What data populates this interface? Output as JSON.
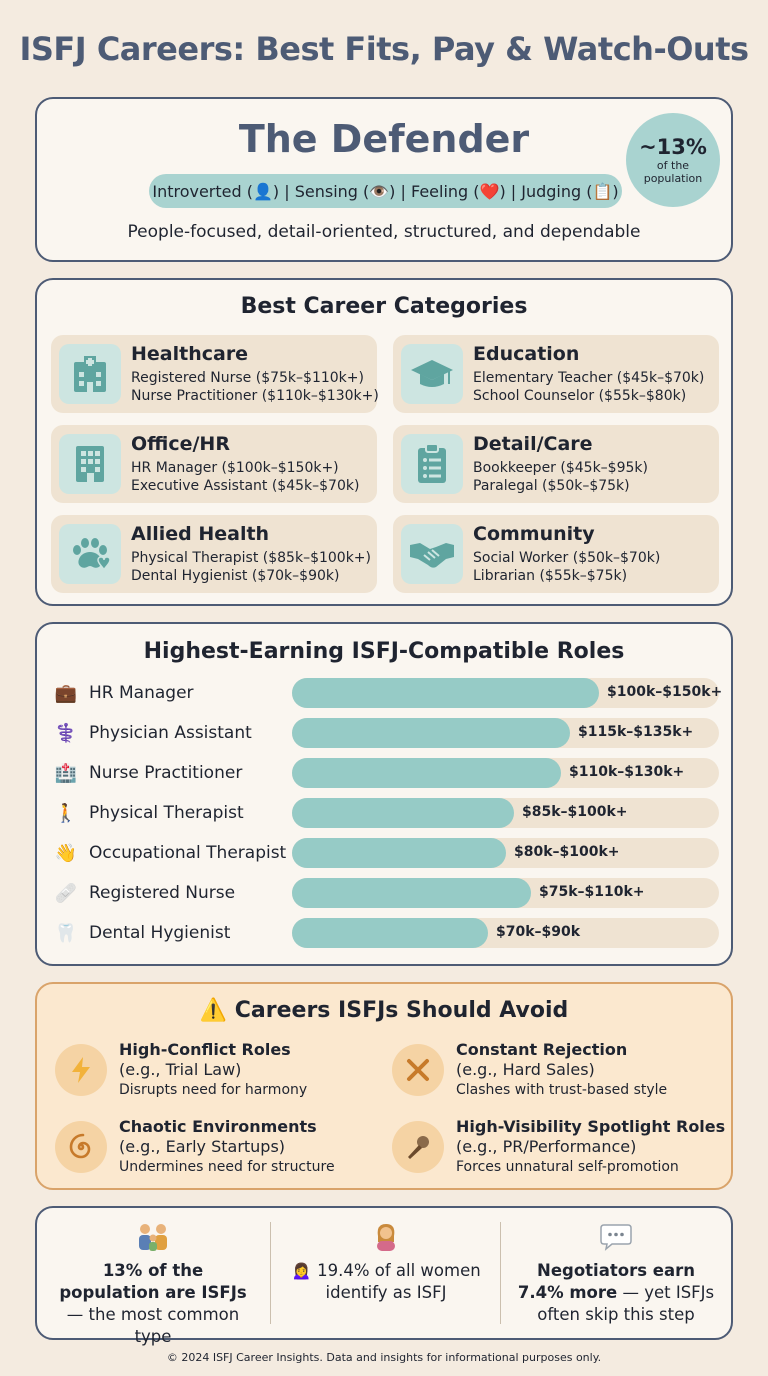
{
  "title": "ISFJ Careers: Best Fits, Pay & Watch-Outs",
  "hero": {
    "title": "The Defender",
    "traits": "Introverted (👤) | Sensing (👁️) | Feeling (❤️) | Judging (📋)",
    "tagline": "People-focused, detail-oriented, structured, and dependable",
    "badge_value": "~13%",
    "badge_label": "of the population"
  },
  "categories": {
    "title": "Best Career Categories",
    "items": [
      {
        "name": "Healthcare",
        "icon": "hospital-icon",
        "roles": [
          "Registered Nurse ($75k–$110k+)",
          "Nurse Practitioner ($110k–$130k+)"
        ]
      },
      {
        "name": "Education",
        "icon": "graduation-cap-icon",
        "roles": [
          "Elementary Teacher ($45k–$70k)",
          "School Counselor ($55k–$80k)"
        ]
      },
      {
        "name": "Office/HR",
        "icon": "office-building-icon",
        "roles": [
          "HR Manager ($100k–$150k+)",
          "Executive Assistant ($45k–$70k)"
        ]
      },
      {
        "name": "Detail/Care",
        "icon": "clipboard-icon",
        "roles": [
          "Bookkeeper ($45k–$95k)",
          "Paralegal ($50k–$75k)"
        ]
      },
      {
        "name": "Allied Health",
        "icon": "paw-heart-icon",
        "roles": [
          "Physical Therapist ($85k–$100k+)",
          "Dental Hygienist ($70k–$90k)"
        ]
      },
      {
        "name": "Community",
        "icon": "handshake-icon",
        "roles": [
          "Social Worker ($50k–$70k)",
          "Librarian ($55k–$75k)"
        ]
      }
    ]
  },
  "earnings": {
    "title": "Highest-Earning ISFJ-Compatible Roles",
    "rows": [
      {
        "label": "HR Manager",
        "icon": "💼",
        "range": "$100k–$150k+",
        "level": 0.72
      },
      {
        "label": "Physician Assistant",
        "icon": "⚕️",
        "range": "$115k–$135k+",
        "level": 0.65
      },
      {
        "label": "Nurse Practitioner",
        "icon": "🏥",
        "range": "$110k–$130k+",
        "level": 0.63
      },
      {
        "label": "Physical Therapist",
        "icon": "🚶",
        "range": "$85k–$100k+",
        "level": 0.52
      },
      {
        "label": "Occupational Therapist",
        "icon": "👋",
        "range": "$80k–$100k+",
        "level": 0.5
      },
      {
        "label": "Registered Nurse",
        "icon": "🩹",
        "range": "$75k–$110k+",
        "level": 0.56
      },
      {
        "label": "Dental Hygienist",
        "icon": "🦷",
        "range": "$70k–$90k",
        "level": 0.46
      }
    ]
  },
  "avoid": {
    "title": "⚠️ Careers ISFJs Should Avoid",
    "items": [
      {
        "title": "High-Conflict Roles",
        "example": "(e.g., Trial Law)",
        "desc": "Disrupts need for harmony",
        "icon": "lightning-icon"
      },
      {
        "title": "Constant Rejection",
        "example": "(e.g., Hard Sales)",
        "desc": "Clashes with trust-based style",
        "icon": "x-mark-icon"
      },
      {
        "title": "Chaotic Environments",
        "example": "(e.g., Early Startups)",
        "desc": "Undermines need for structure",
        "icon": "spiral-icon"
      },
      {
        "title": "High-Visibility Spotlight Roles",
        "example": "(e.g., PR/Performance)",
        "desc": "Forces unnatural self-promotion",
        "icon": "microphone-icon"
      }
    ]
  },
  "stats": [
    {
      "bold": "13% of the population are ISFJs",
      "rest": " — the most common type",
      "icon": "family-icon"
    },
    {
      "bold": "",
      "rest": "🙍‍♀️ 19.4% of all women identify as ISFJ",
      "icon": "woman-icon"
    },
    {
      "bold": "Negotiators earn 7.4% more",
      "rest": " — yet ISFJs often skip this step",
      "icon": "speech-bubble-icon"
    }
  ],
  "footer": "© 2024 ISFJ Career Insights. Data and insights for informational purposes only.",
  "colors": {
    "accent": "#4d5b75",
    "teal": "#96cbc6",
    "sand": "#efe3d2",
    "warning_bg": "#fbe8cf"
  }
}
